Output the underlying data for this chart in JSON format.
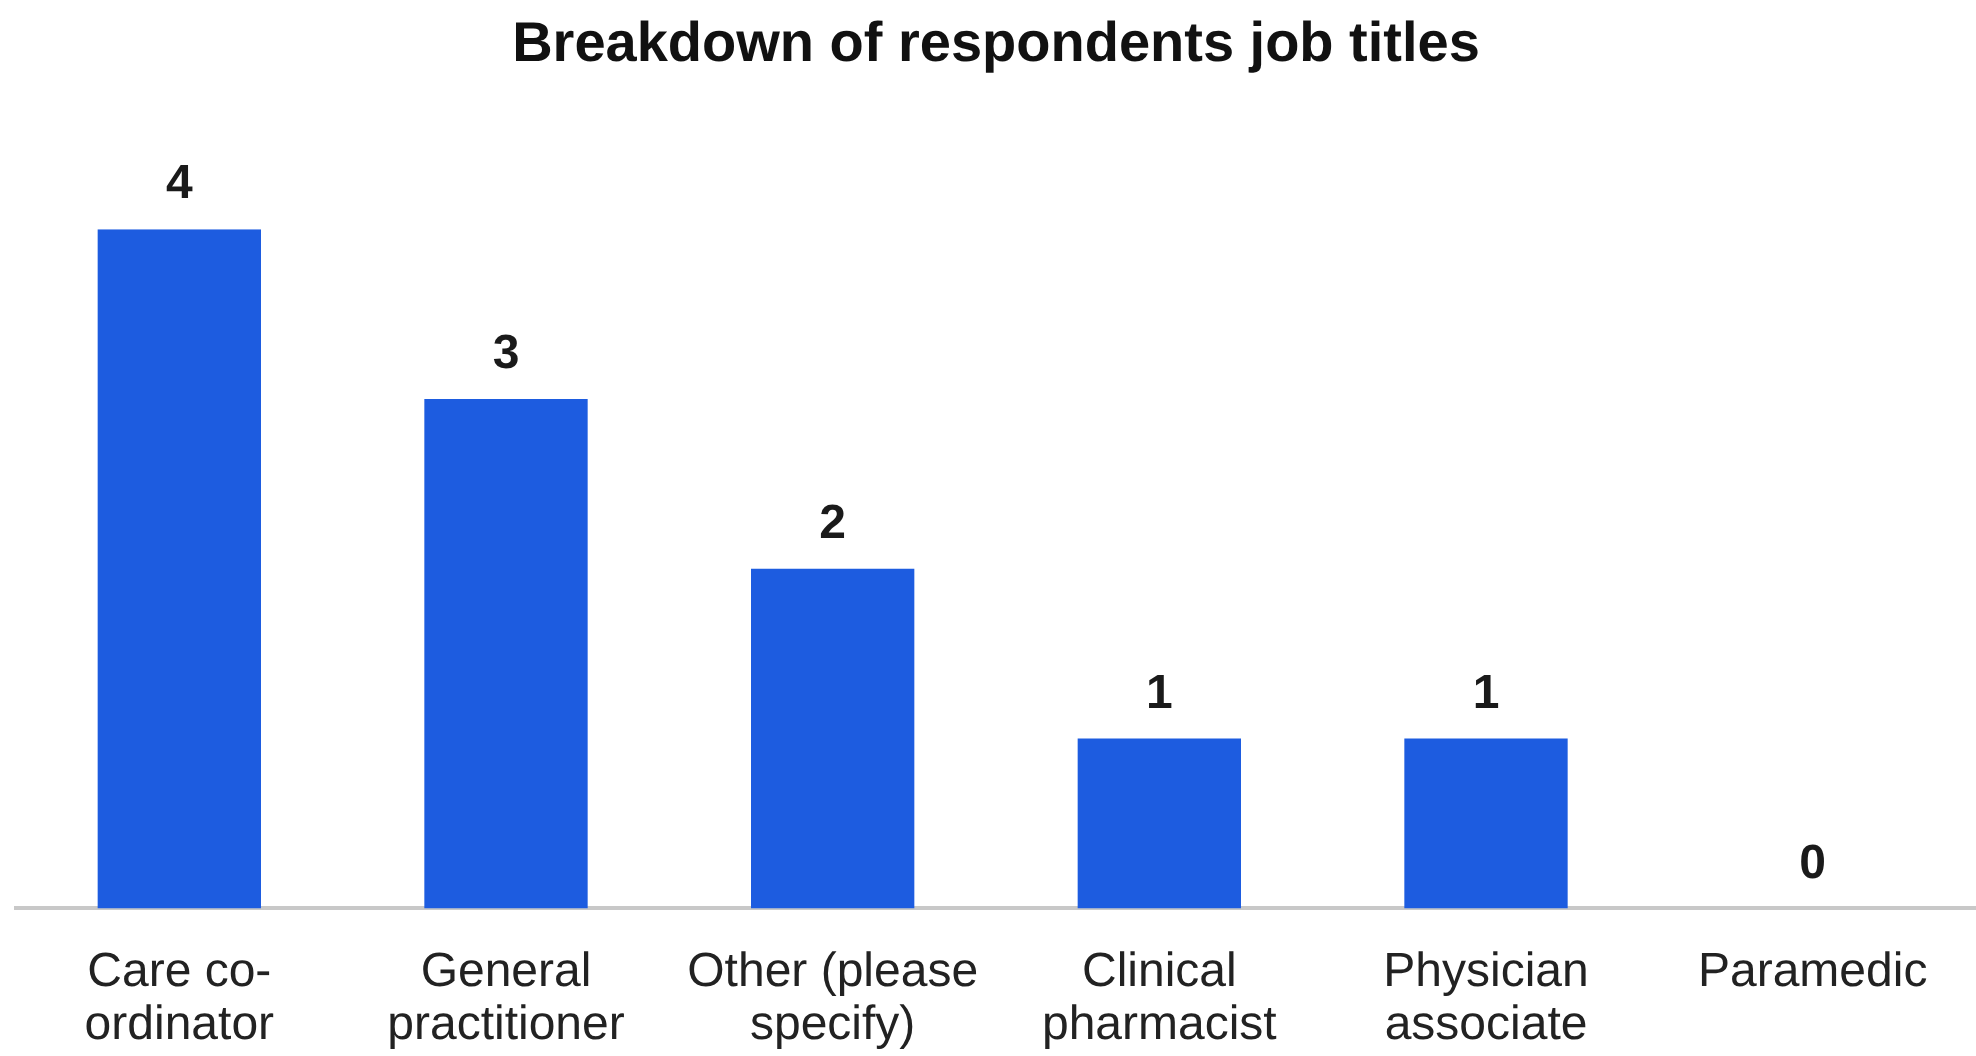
{
  "chart_data": {
    "type": "bar",
    "title": "Breakdown of respondents job titles",
    "categories": [
      "Care co-ordinator",
      "General practitioner",
      "Other (please specify)",
      "Clinical pharmacist",
      "Physician associate",
      "Paramedic"
    ],
    "values": [
      4,
      3,
      2,
      1,
      1,
      0
    ],
    "color": "#1d5ce0",
    "data_labels": true
  }
}
